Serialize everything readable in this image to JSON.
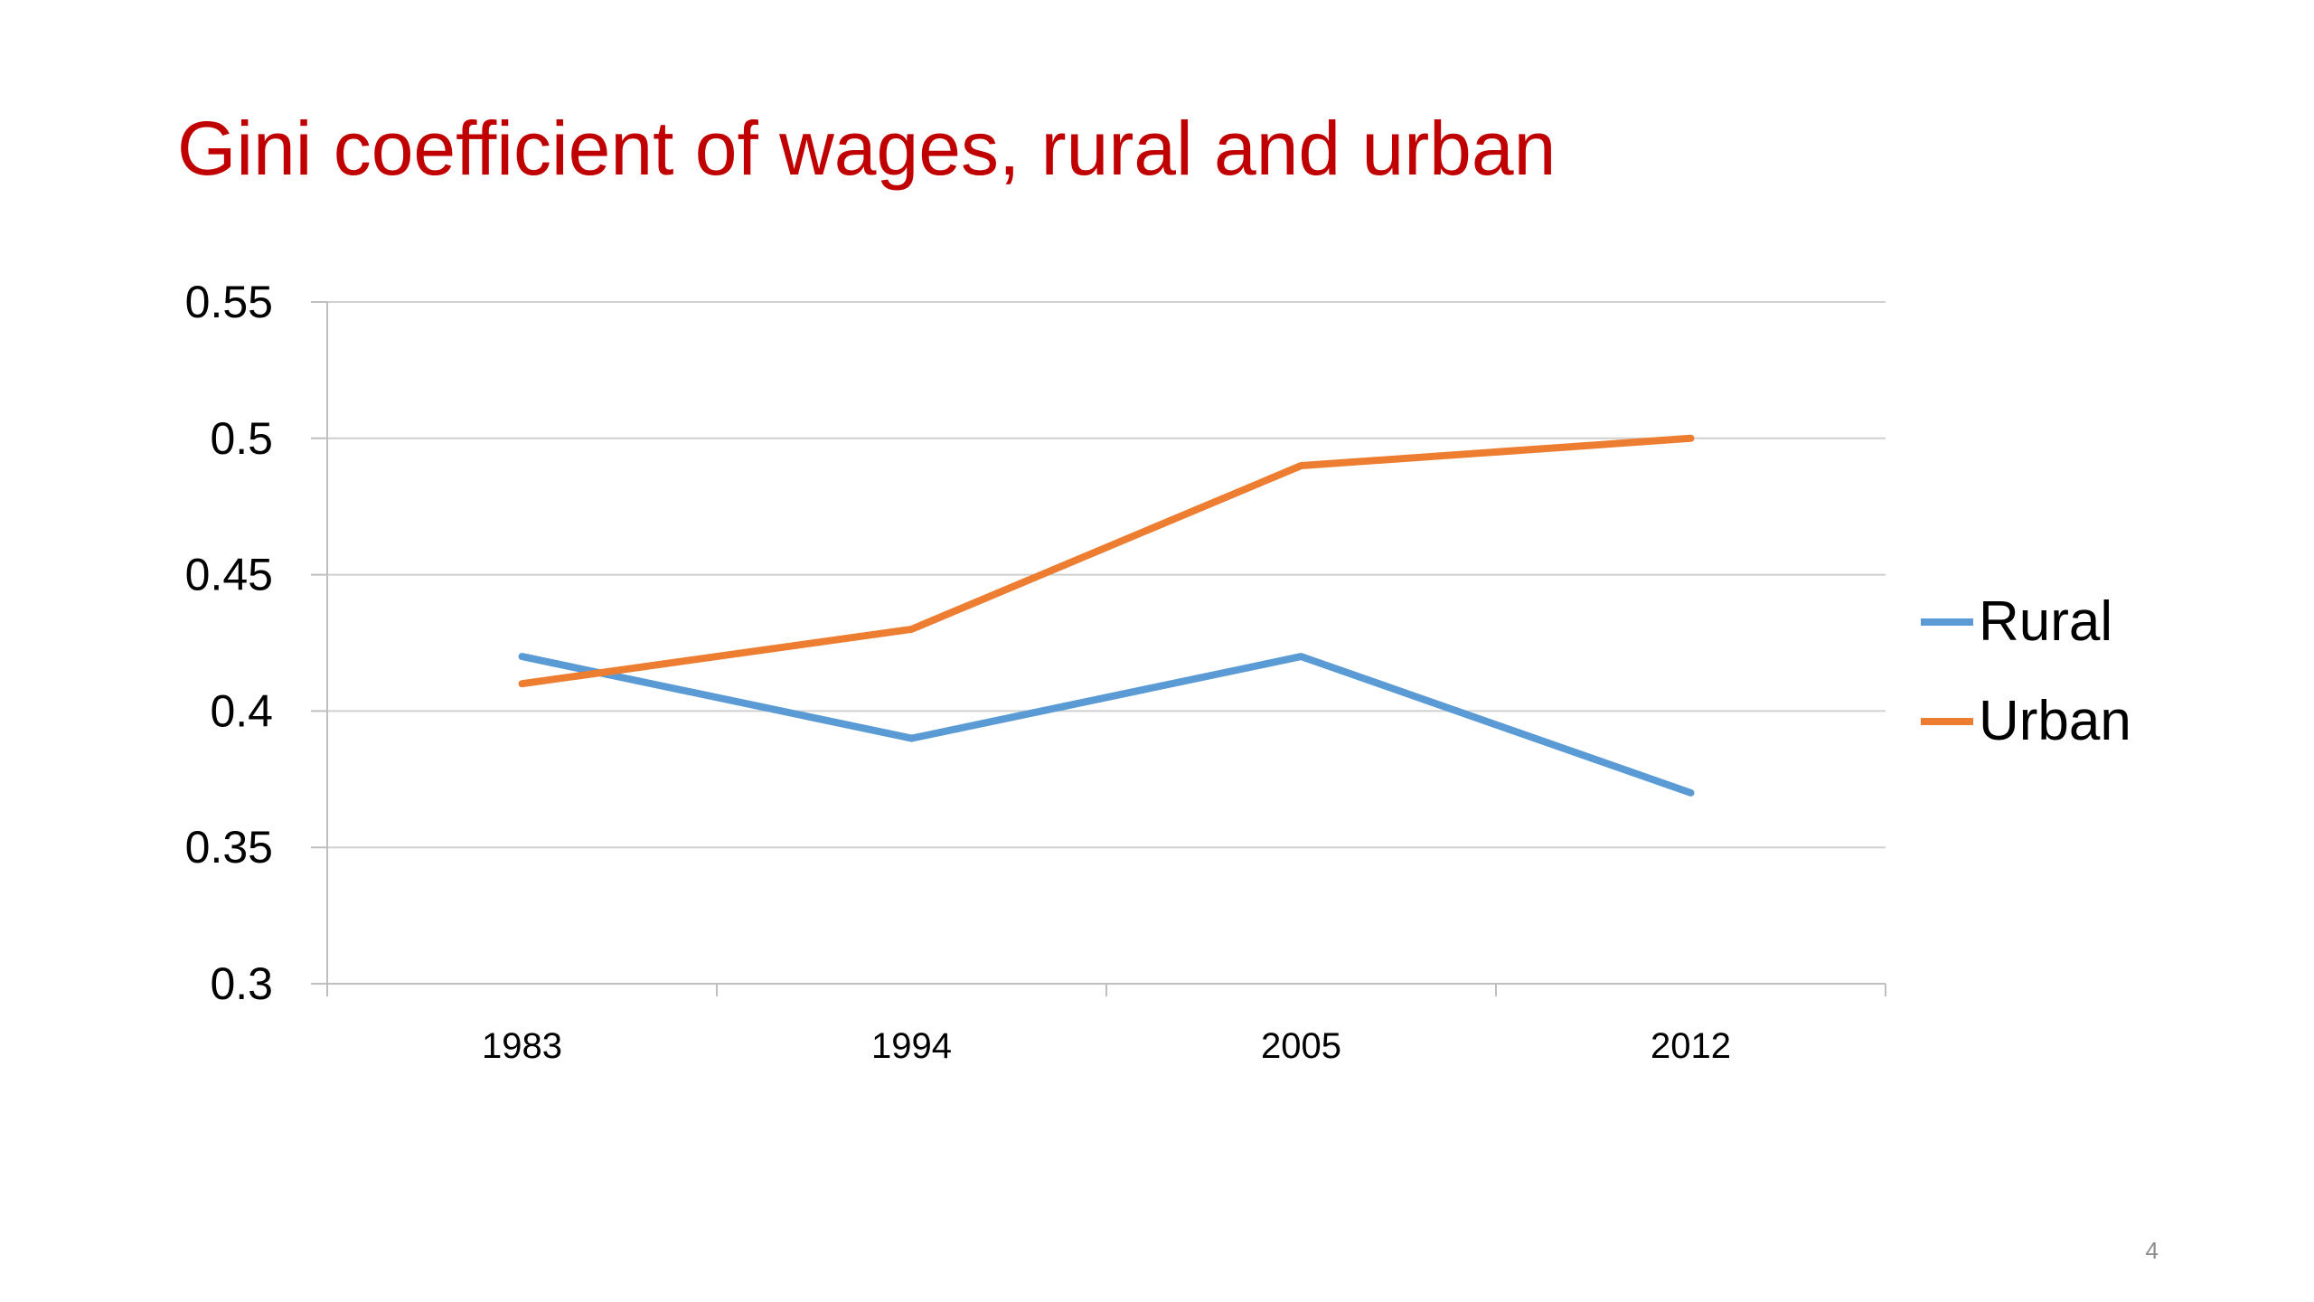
{
  "slide": {
    "title": "Gini coefficient of wages, rural and urban",
    "page_number": "4"
  },
  "chart_data": {
    "type": "line",
    "title": "",
    "xlabel": "",
    "ylabel": "",
    "categories": [
      "1983",
      "1994",
      "2005",
      "2012"
    ],
    "y_ticks": [
      "0.3",
      "0.35",
      "0.4",
      "0.45",
      "0.5",
      "0.55"
    ],
    "ylim": [
      0.3,
      0.55
    ],
    "grid": true,
    "legend_position": "right",
    "series": [
      {
        "name": "Rural",
        "color": "#5b9bd5",
        "values": [
          0.42,
          0.39,
          0.42,
          0.37
        ]
      },
      {
        "name": "Urban",
        "color": "#ed7d31",
        "values": [
          0.41,
          0.43,
          0.49,
          0.5
        ]
      }
    ]
  }
}
